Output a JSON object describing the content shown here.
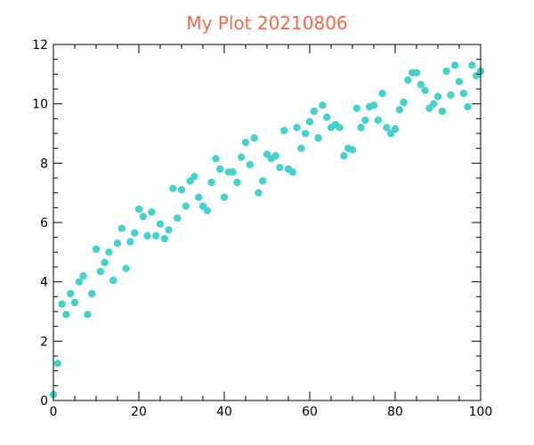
{
  "chart_data": {
    "type": "scatter",
    "title": "My Plot 20210806",
    "title_color": "#f26b4f",
    "xlabel": "",
    "ylabel": "",
    "xlim": [
      0,
      100
    ],
    "ylim": [
      0,
      12
    ],
    "x_ticks": [
      0,
      20,
      40,
      60,
      80,
      100
    ],
    "y_ticks": [
      0,
      2,
      4,
      6,
      8,
      10,
      12
    ],
    "grid": false,
    "marker_color": "#48d1cc",
    "series": [
      {
        "x": [
          0,
          1,
          2,
          3,
          4,
          5,
          6,
          7,
          8,
          9,
          10,
          11,
          12,
          13,
          14,
          15,
          16,
          17,
          18,
          19,
          20,
          21,
          22,
          23,
          24,
          25,
          26,
          27,
          28,
          29,
          30,
          31,
          32,
          33,
          34,
          35,
          36,
          37,
          38,
          39,
          40,
          41,
          42,
          43,
          44,
          45,
          46,
          47,
          48,
          49,
          50,
          51,
          52,
          53,
          54,
          55,
          56,
          57,
          58,
          59,
          60,
          61,
          62,
          63,
          64,
          65,
          66,
          67,
          68,
          69,
          70,
          71,
          72,
          73,
          74,
          75,
          76,
          77,
          78,
          79,
          80,
          81,
          82,
          83,
          84,
          85,
          86,
          87,
          88,
          89,
          90,
          91,
          92,
          93,
          94,
          95,
          96,
          97,
          98,
          99,
          100
        ],
        "y": [
          0.2,
          1.25,
          3.25,
          2.9,
          3.6,
          3.3,
          4.0,
          4.2,
          2.9,
          3.6,
          5.1,
          4.35,
          4.65,
          5.0,
          4.05,
          5.3,
          5.8,
          4.45,
          5.35,
          5.65,
          6.45,
          6.2,
          5.55,
          6.35,
          5.55,
          5.95,
          5.45,
          5.75,
          7.15,
          6.15,
          7.1,
          6.55,
          7.4,
          7.55,
          6.85,
          6.55,
          6.4,
          7.35,
          8.15,
          7.8,
          6.85,
          7.7,
          7.7,
          7.35,
          8.2,
          8.7,
          7.95,
          8.85,
          7.0,
          7.4,
          8.3,
          8.15,
          8.25,
          7.85,
          9.1,
          7.8,
          7.7,
          9.2,
          8.5,
          9.0,
          9.4,
          9.75,
          8.85,
          9.95,
          9.55,
          9.2,
          9.3,
          9.2,
          8.25,
          8.5,
          8.45,
          9.85,
          9.2,
          9.45,
          9.9,
          9.95,
          9.45,
          10.35,
          9.2,
          9.0,
          9.15,
          9.8,
          10.05,
          10.8,
          11.05,
          11.05,
          10.65,
          10.45,
          9.85,
          10.0,
          10.25,
          9.75,
          11.1,
          10.3,
          11.3,
          10.75,
          10.35,
          9.9,
          11.3,
          10.95,
          11.1
        ]
      }
    ]
  }
}
